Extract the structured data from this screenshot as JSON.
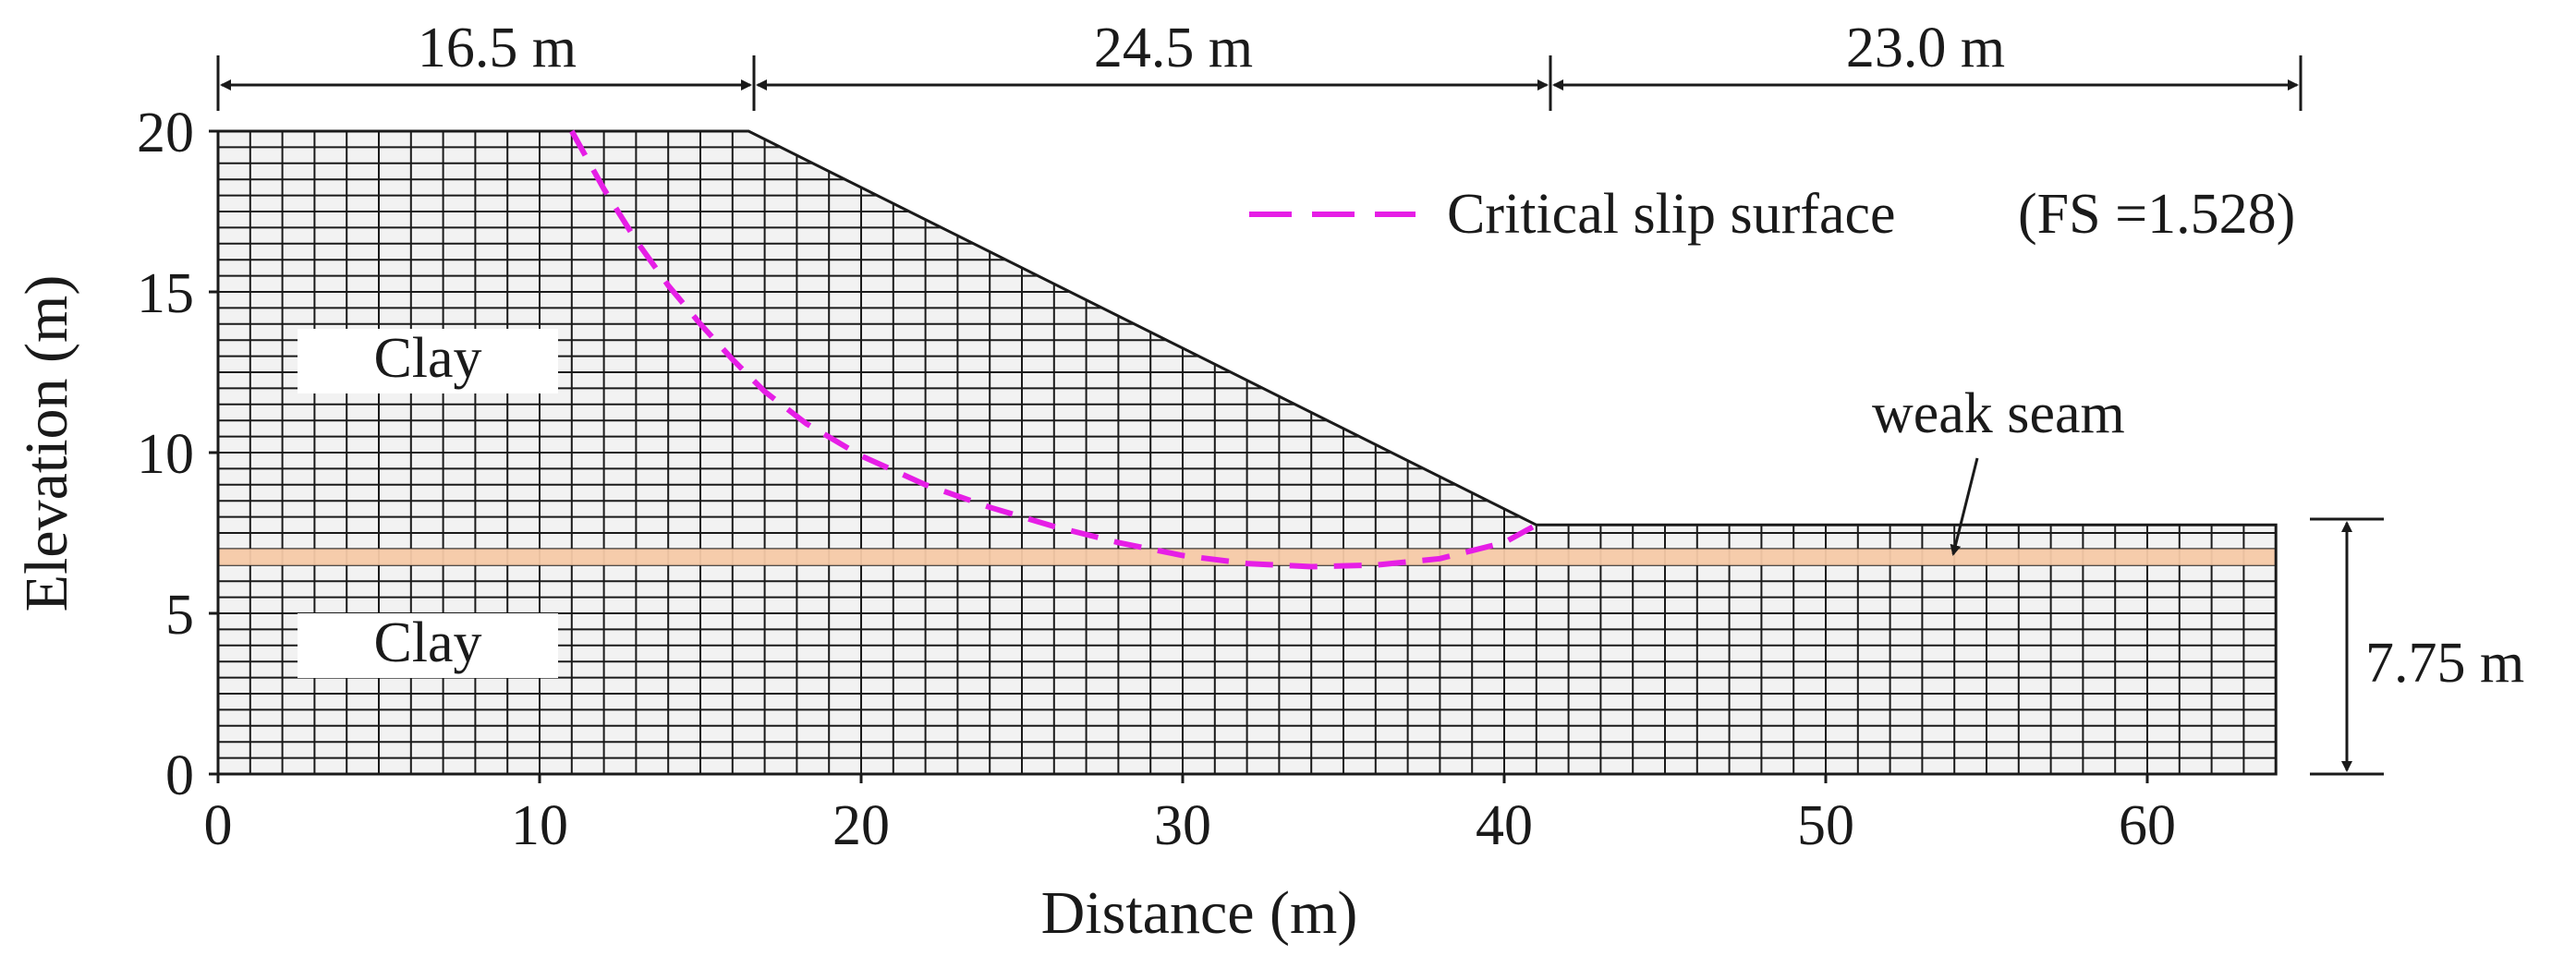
{
  "figure": {
    "x_axis": {
      "label": "Distance (m)",
      "range": [
        0,
        65.75
      ],
      "ticks": [
        0,
        10,
        20,
        30,
        40,
        50,
        60
      ],
      "tick_labels": [
        "0",
        "10",
        "20",
        "30",
        "40",
        "50",
        "60"
      ]
    },
    "y_axis": {
      "label": "Elevation (m)",
      "range": [
        0,
        20
      ],
      "ticks": [
        0,
        5,
        10,
        15,
        20
      ],
      "tick_labels": [
        "0",
        "5",
        "10",
        "15",
        "20"
      ]
    },
    "dimensions": {
      "crest_width": "16.5 m",
      "slope_width": "24.5 m",
      "toe_width": "23.0 m",
      "toe_height": "7.75 m"
    },
    "legend": {
      "label": "Critical slip surface",
      "factor_of_safety": "(FS =1.528)",
      "line_color": "#e61ee6"
    },
    "regions": {
      "upper_layer": "Clay",
      "lower_layer": "Clay",
      "weak_seam": "weak seam"
    },
    "colors": {
      "mesh_fill": "#f2f2f2",
      "mesh_lines": "#1a1a1a",
      "weak_seam": "#f5c9a6",
      "slip_surface": "#e61ee6"
    }
  },
  "geometry": {
    "slope_profile": [
      [
        0,
        0
      ],
      [
        0,
        20
      ],
      [
        16.5,
        20
      ],
      [
        41,
        7.75
      ],
      [
        64,
        7.75
      ],
      [
        64,
        0
      ]
    ],
    "weak_seam_elevation": [
      6.5,
      7.0
    ],
    "mesh": {
      "column_spacing": 1.0,
      "row_spacing": 0.5
    },
    "slip_surface": [
      [
        11,
        20
      ],
      [
        12,
        18.2
      ],
      [
        13,
        16.6
      ],
      [
        14,
        15.2
      ],
      [
        15,
        14.0
      ],
      [
        16,
        12.9
      ],
      [
        17,
        11.9
      ],
      [
        18.3,
        10.9
      ],
      [
        20,
        9.9
      ],
      [
        22,
        9.0
      ],
      [
        24,
        8.3
      ],
      [
        26,
        7.7
      ],
      [
        28,
        7.2
      ],
      [
        30,
        6.8
      ],
      [
        32,
        6.55
      ],
      [
        34,
        6.45
      ],
      [
        36,
        6.5
      ],
      [
        38,
        6.7
      ],
      [
        40,
        7.2
      ],
      [
        41,
        7.75
      ]
    ]
  }
}
